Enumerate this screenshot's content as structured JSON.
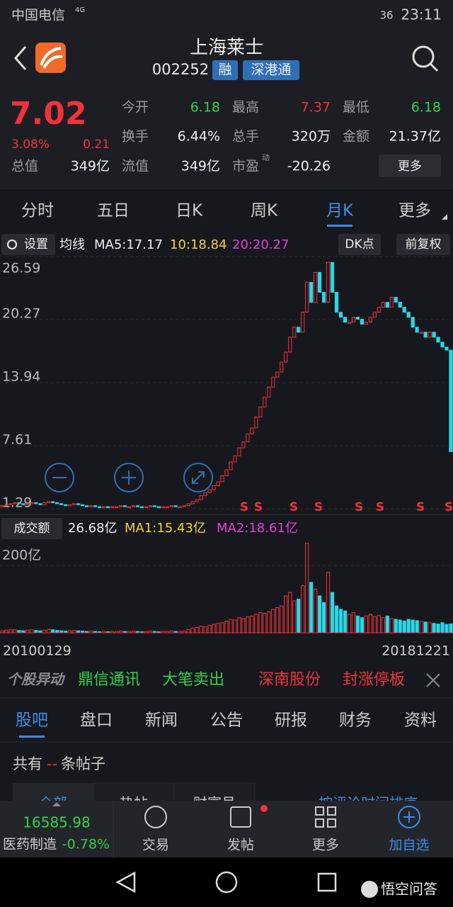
{
  "status_bar": {
    "carrier": "中国电信",
    "network": "4G",
    "battery": "36",
    "time": "23:11"
  },
  "header": {
    "title": "上海莱士",
    "code": "002252",
    "tags": [
      "融",
      "深港通"
    ]
  },
  "quote": {
    "price": "7.02",
    "change_pct": "3.08%",
    "change": "0.21",
    "stats": [
      {
        "label": "今开",
        "value": "6.18"
      },
      {
        "label": "最高",
        "value": "7.37"
      },
      {
        "label": "最低",
        "value": "6.18"
      },
      {
        "label": "换手",
        "value": "6.44%"
      },
      {
        "label": "总手",
        "value": "320万"
      },
      {
        "label": "金额",
        "value": "21.37亿"
      },
      {
        "label": "总值",
        "value": "349亿"
      },
      {
        "label": "流值",
        "value": "349亿"
      },
      {
        "label": "市盈",
        "value": "-20.26",
        "sup": "动"
      }
    ],
    "more": "更多"
  },
  "tabs": [
    "分时",
    "五日",
    "日K",
    "周K",
    "月K",
    "更多"
  ],
  "toolbar": {
    "settings": "设置",
    "ma_label": "均线",
    "ma5": "MA5:17.17",
    "ma10": "10:18.84",
    "ma20": "20:20.27",
    "dk": "DK点",
    "adjust": "前复权"
  },
  "chart": {
    "ylim": [
      1.29,
      26.59
    ],
    "yticks": [
      26.59,
      20.27,
      13.94,
      7.61,
      1.29
    ],
    "closes": [
      1.6,
      1.7,
      1.8,
      1.9,
      1.8,
      1.7,
      1.8,
      1.9,
      1.8,
      1.7,
      1.9,
      2.0,
      1.9,
      1.8,
      1.7,
      1.6,
      1.7,
      1.8,
      1.7,
      1.6,
      1.5,
      1.6,
      1.5,
      1.4,
      1.5,
      1.4,
      1.5,
      1.5,
      1.6,
      1.5,
      1.5,
      1.6,
      1.5,
      1.4,
      1.5,
      1.6,
      1.5,
      1.4,
      1.5,
      1.5,
      1.6,
      1.5,
      1.5,
      1.6,
      1.8,
      2.0,
      2.2,
      2.6,
      2.9,
      3.2,
      3.6,
      4.0,
      4.6,
      5.2,
      6.0,
      6.6,
      7.4,
      8.0,
      8.8,
      9.4,
      10.5,
      11.5,
      12.5,
      13.5,
      14.5,
      15.0,
      16.0,
      17.0,
      18.5,
      19.5,
      19,
      21,
      24,
      22,
      25,
      23,
      22,
      26,
      23,
      21,
      20.5,
      20,
      20,
      20.5,
      20.3,
      19.8,
      20,
      20.5,
      21,
      21.5,
      22,
      21.5,
      22.5,
      22,
      21.5,
      21,
      20.5,
      19.5,
      19,
      19,
      18.5,
      19,
      18.5,
      18,
      17.5,
      17.2,
      7.02
    ],
    "signals": [
      "S",
      "S",
      "S",
      "S",
      "S",
      "S",
      "S",
      "S"
    ],
    "volume": {
      "title": "成交额",
      "last": "26.68亿",
      "ma1": "MA1:15.43亿",
      "ma2": "MA2:18.61亿",
      "ylim": [
        0,
        270
      ],
      "yticks": [
        {
          "value": 200,
          "label": "200亿"
        }
      ],
      "values": [
        6,
        8,
        10,
        9,
        7,
        6,
        8,
        9,
        7,
        6,
        8,
        10,
        9,
        7,
        6,
        5,
        6,
        7,
        6,
        5,
        4,
        5,
        4,
        3,
        4,
        3,
        4,
        4,
        5,
        4,
        4,
        5,
        4,
        3,
        4,
        5,
        4,
        3,
        4,
        4,
        5,
        4,
        4,
        5,
        10,
        14,
        16,
        20,
        18,
        22,
        25,
        28,
        30,
        35,
        40,
        38,
        45,
        42,
        48,
        50,
        55,
        60,
        58,
        62,
        70,
        75,
        80,
        110,
        120,
        95,
        100,
        140,
        267,
        150,
        130,
        110,
        90,
        180,
        120,
        80,
        70,
        65,
        55,
        60,
        50,
        45,
        50,
        55,
        48,
        52,
        45,
        50,
        42,
        40,
        38,
        35,
        40,
        38,
        36,
        34,
        32,
        30,
        28,
        26,
        30,
        25,
        26.68
      ]
    },
    "start_date": "20100129",
    "end_date": "20181221"
  },
  "ticker": {
    "label": "个股异动",
    "items": [
      "鼎信通讯",
      "大笔卖出",
      "深南股份",
      "封涨停板"
    ]
  },
  "sections": [
    "股吧",
    "盘口",
    "新闻",
    "公告",
    "研报",
    "财务",
    "资料"
  ],
  "posts": {
    "prefix": "共有",
    "count": "--",
    "suffix": "条帖子",
    "tabs": [
      "全部",
      "热帖",
      "财富号"
    ],
    "sort": "按评论时间排序"
  },
  "bottom_bar": {
    "index": "16585.98",
    "sector": "医药制造",
    "sector_change": "-0.78%",
    "buttons": [
      "交易",
      "发帖",
      "更多",
      "加自选"
    ]
  },
  "watermark": "悟空问答"
}
